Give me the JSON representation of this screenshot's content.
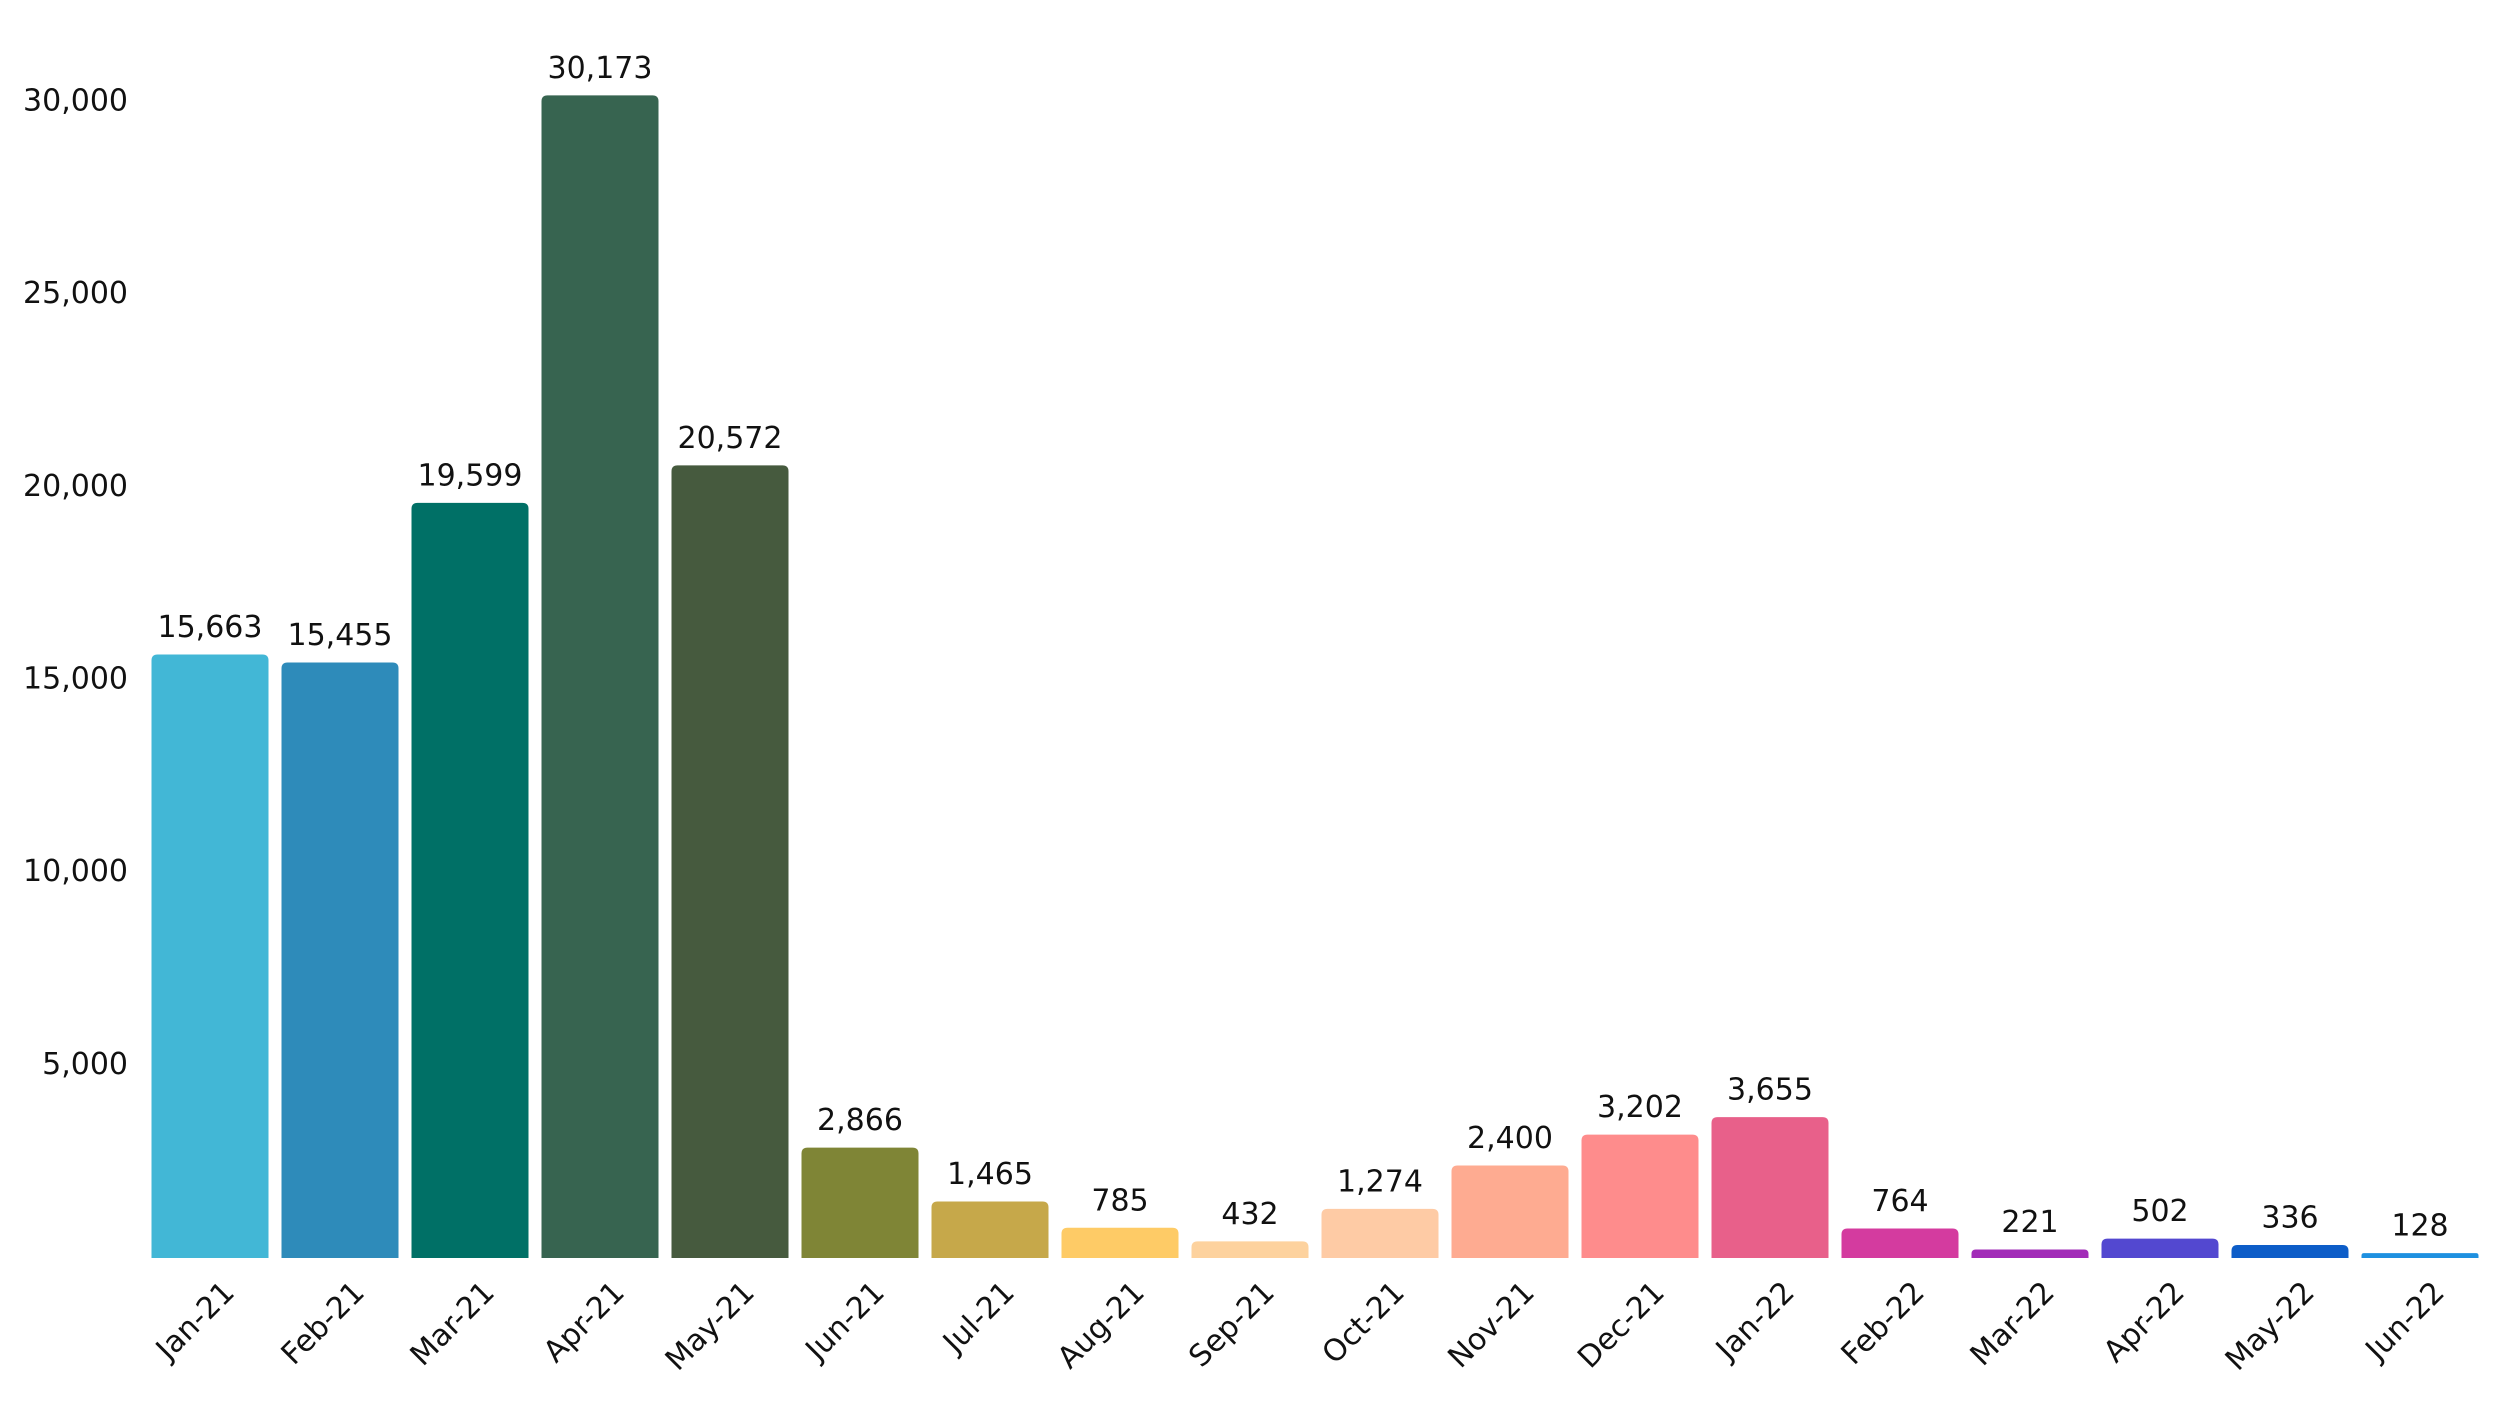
{
  "chart_data": {
    "type": "bar",
    "categories": [
      "Jan-21",
      "Feb-21",
      "Mar-21",
      "Apr-21",
      "May-21",
      "Jun-21",
      "Jul-21",
      "Aug-21",
      "Sep-21",
      "Oct-21",
      "Nov-21",
      "Dec-21",
      "Jan-22",
      "Feb-22",
      "Mar-22",
      "Apr-22",
      "May-22",
      "Jun-22"
    ],
    "values": [
      15663,
      15455,
      19599,
      30173,
      20572,
      2866,
      1465,
      785,
      432,
      1274,
      2400,
      3202,
      3655,
      764,
      221,
      502,
      336,
      128
    ],
    "value_labels": [
      "15,663",
      "15,455",
      "19,599",
      "30,173",
      "20,572",
      "2,866",
      "1,465",
      "785",
      "432",
      "1,274",
      "2,400",
      "3,202",
      "3,655",
      "764",
      "221",
      "502",
      "336",
      "128"
    ],
    "colors": [
      "#42b7d6",
      "#2e8bba",
      "#007066",
      "#376450",
      "#465a3e",
      "#7f8536",
      "#c6a84a",
      "#fecb66",
      "#fdd29e",
      "#fecba5",
      "#feab91",
      "#fe8c8c",
      "#e8608a",
      "#d43b9f",
      "#a22cb8",
      "#5348d0",
      "#0d5dc8",
      "#1e90e0"
    ],
    "ylim": [
      0,
      32000
    ],
    "yticks": [
      {
        "value": 5000,
        "label": "5,000"
      },
      {
        "value": 10000,
        "label": "10,000"
      },
      {
        "value": 15000,
        "label": "15,000"
      },
      {
        "value": 20000,
        "label": "20,000"
      },
      {
        "value": 25000,
        "label": "25,000"
      },
      {
        "value": 30000,
        "label": "30,000"
      }
    ],
    "grid": false
  }
}
